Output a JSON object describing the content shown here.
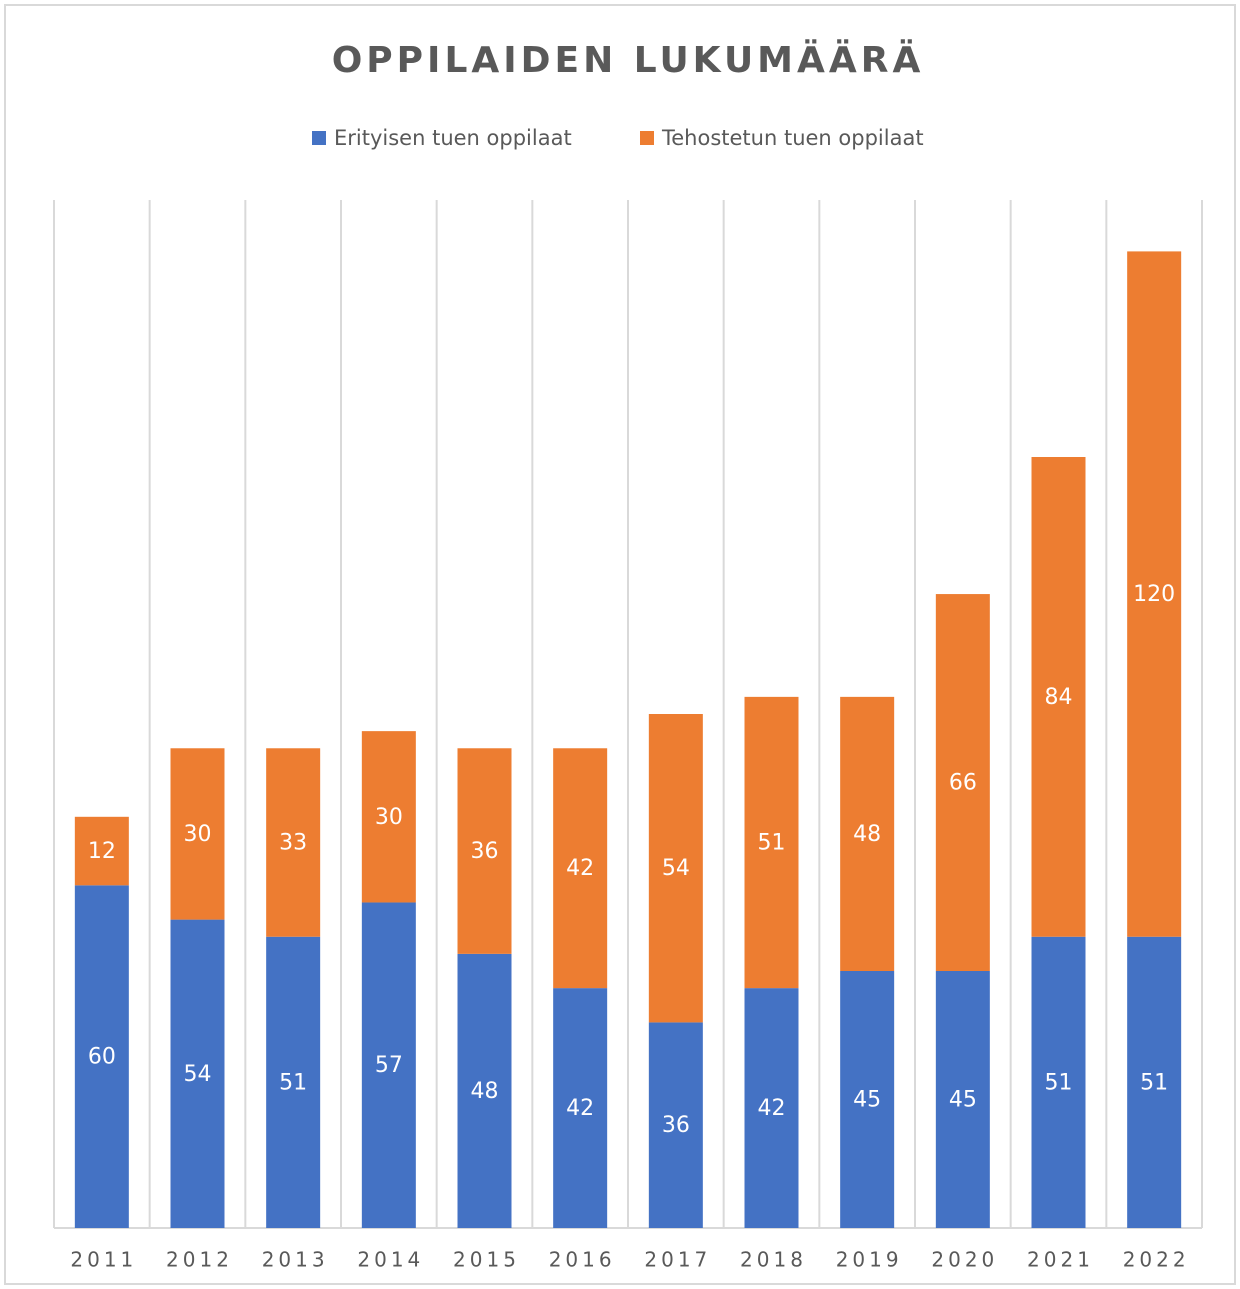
{
  "chart_data": {
    "type": "stacked_bar",
    "title": "OPPILAIDEN LUKUMÄÄRÄ",
    "categories": [
      "2011",
      "2012",
      "2013",
      "2014",
      "2015",
      "2016",
      "2017",
      "2018",
      "2019",
      "2020",
      "2021",
      "2022"
    ],
    "series": [
      {
        "name": "Erityisen tuen oppilaat",
        "color": "#4472c4",
        "values": [
          60,
          54,
          51,
          57,
          48,
          42,
          36,
          42,
          45,
          45,
          51,
          51
        ]
      },
      {
        "name": "Tehostetun tuen oppilaat",
        "color": "#ed7d31",
        "values": [
          12,
          30,
          33,
          30,
          36,
          42,
          54,
          51,
          48,
          66,
          84,
          120
        ]
      }
    ],
    "ylim": [
      0,
      180
    ],
    "legend": "top"
  }
}
